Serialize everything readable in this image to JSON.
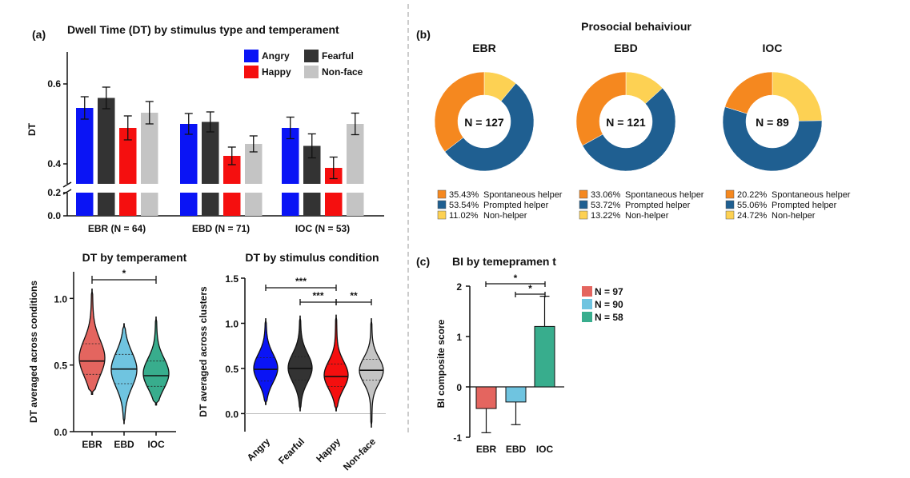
{
  "panel_labels": {
    "a": "(a)",
    "b": "(b)",
    "c": "(c)"
  },
  "chart_data": [
    {
      "id": "dwell_time",
      "type": "bar",
      "title": "Dwell Time (DT) by stimulus type and temperament",
      "ylabel": "DT",
      "categories": [
        "EBR (N = 64)",
        "EBD (N = 71)",
        "IOC (N = 53)"
      ],
      "yticks": [
        "0.0",
        "0.2",
        "0.4",
        "0.6"
      ],
      "ylim_upper": [
        0.35,
        0.68
      ],
      "ylim_lower": [
        0,
        0.2
      ],
      "colors": {
        "Angry": "#0a14f5",
        "Fearful": "#333333",
        "Happy": "#f50f0f",
        "Non-face": "#c4c4c4"
      },
      "series": [
        {
          "name": "Angry",
          "values": [
            0.54,
            0.5,
            0.49
          ],
          "errors": [
            0.028,
            0.026,
            0.027
          ]
        },
        {
          "name": "Fearful",
          "values": [
            0.565,
            0.505,
            0.445
          ],
          "errors": [
            0.027,
            0.025,
            0.03
          ]
        },
        {
          "name": "Happy",
          "values": [
            0.49,
            0.42,
            0.39
          ],
          "errors": [
            0.03,
            0.022,
            0.027
          ]
        },
        {
          "name": "Non-face",
          "values": [
            0.528,
            0.45,
            0.5
          ],
          "errors": [
            0.028,
            0.02,
            0.027
          ]
        }
      ]
    },
    {
      "id": "dt_temperament",
      "type": "violin",
      "title": "DT by temperament",
      "ylabel": "DT averaged across conditions",
      "categories": [
        "EBR",
        "EBD",
        "IOC"
      ],
      "colors": [
        "#e4655f",
        "#6fc4e0",
        "#38ad8d"
      ],
      "yticks": [
        "0.0",
        "0.5",
        "1.0"
      ],
      "ylim": [
        0,
        1.2
      ],
      "medians": [
        0.53,
        0.47,
        0.42
      ],
      "quartiles": [
        [
          0.43,
          0.66
        ],
        [
          0.36,
          0.58
        ],
        [
          0.34,
          0.53
        ]
      ],
      "ranges": [
        [
          0.28,
          1.07
        ],
        [
          0.06,
          0.81
        ],
        [
          0.2,
          0.86
        ]
      ],
      "significance": [
        {
          "from": "EBR",
          "to": "IOC",
          "label": "*"
        }
      ]
    },
    {
      "id": "dt_stimulus",
      "type": "violin",
      "title": "DT by stimulus condition",
      "ylabel": "DT averaged across clusters",
      "categories": [
        "Angry",
        "Fearful",
        "Happy",
        "Non-face"
      ],
      "colors": [
        "#0a14f5",
        "#333333",
        "#f50f0f",
        "#c4c4c4"
      ],
      "yticks": [
        "0.0",
        "0.5",
        "1.0",
        "1.5"
      ],
      "ylim": [
        -0.2,
        1.5
      ],
      "medians": [
        0.49,
        0.5,
        0.41,
        0.48
      ],
      "quartiles": [
        [
          0.36,
          0.62
        ],
        [
          0.37,
          0.63
        ],
        [
          0.3,
          0.55
        ],
        [
          0.37,
          0.6
        ]
      ],
      "ranges": [
        [
          0.1,
          1.05
        ],
        [
          0.03,
          1.08
        ],
        [
          0.03,
          1.09
        ],
        [
          -0.15,
          1.05
        ]
      ],
      "significance": [
        {
          "from": "Angry",
          "to": "Happy",
          "label": "***"
        },
        {
          "from": "Fearful",
          "to": "Happy",
          "label": "***"
        },
        {
          "from": "Happy",
          "to": "Non-face",
          "label": "**"
        }
      ]
    },
    {
      "id": "prosocial",
      "type": "pie",
      "title": "Prosocial behaiviour",
      "categories": [
        "Spontaneous helper",
        "Prompted helper",
        "Non-helper"
      ],
      "colors": [
        "#f5881f",
        "#1f5f91",
        "#fdd153"
      ],
      "groups": [
        {
          "name": "EBR",
          "n_label": "N = 127",
          "values": [
            35.43,
            53.54,
            11.02
          ],
          "labels": [
            "35.43%",
            "53.54%",
            "11.02%"
          ]
        },
        {
          "name": "EBD",
          "n_label": "N = 121",
          "values": [
            33.06,
            53.72,
            13.22
          ],
          "labels": [
            "33.06%",
            "53.72%",
            "13.22%"
          ]
        },
        {
          "name": "IOC",
          "n_label": "N = 89",
          "values": [
            20.22,
            55.06,
            24.72
          ],
          "labels": [
            "20.22%",
            "55.06%",
            "24.72%"
          ]
        }
      ]
    },
    {
      "id": "bi",
      "type": "bar",
      "title": "BI by temepramen t",
      "ylabel": "BI composite score",
      "categories": [
        "EBR",
        "EBD",
        "IOC"
      ],
      "values": [
        -0.43,
        -0.3,
        1.2
      ],
      "errors": [
        0.48,
        0.45,
        0.6
      ],
      "colors": [
        "#e4655f",
        "#6fc4e0",
        "#38ad8d"
      ],
      "yticks": [
        "-1",
        "0",
        "1",
        "2"
      ],
      "ylim": [
        -1,
        2
      ],
      "legend": [
        "N = 97",
        "N = 90",
        "N = 58"
      ],
      "significance": [
        {
          "from": "EBR",
          "to": "IOC",
          "label": "*"
        },
        {
          "from": "EBD",
          "to": "IOC",
          "label": "*"
        }
      ]
    }
  ]
}
